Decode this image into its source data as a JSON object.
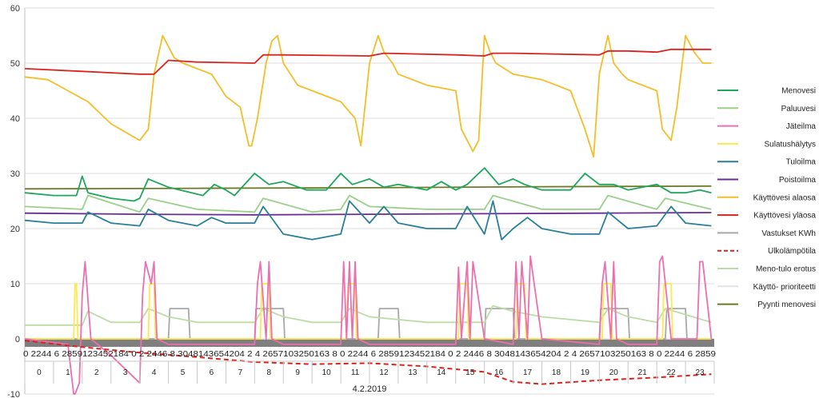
{
  "chart_data": {
    "type": "line",
    "title": "",
    "xlabel": "",
    "ylabel": "",
    "ylim": [
      -10,
      60
    ],
    "y_ticks": [
      -10,
      0,
      10,
      20,
      30,
      40,
      50,
      60
    ],
    "grid": true,
    "legend_position": "right",
    "date_label": "4.2.2019",
    "minute_label_row": "0 2244 6 2859123452184 0 2 2446 8 3048143654204 2 4 2657103250163 8 0 2244 6 2859123452184 0 2 2446 8 3048143654204 2 4 2657103250163 8 0 2244 6 2859",
    "hours": [
      "0",
      "1",
      "2",
      "3",
      "4",
      "5",
      "6",
      "7",
      "8",
      "9",
      "10",
      "11",
      "12",
      "13",
      "14",
      "15",
      "16",
      "17",
      "18",
      "19",
      "20",
      "21",
      "22",
      "23"
    ],
    "series": [
      {
        "name": "Menovesi",
        "color": "#1fa65a",
        "style": "solid",
        "x": [
          0,
          1,
          1.8,
          2,
          2.2,
          3,
          3.8,
          4,
          4.3,
          5,
          6.2,
          6.6,
          7,
          7.3,
          8,
          8.5,
          9,
          9.8,
          10.5,
          11,
          11.4,
          12,
          12.5,
          13,
          14,
          14.5,
          15,
          15.4,
          16,
          16.5,
          17,
          17.4,
          18,
          19,
          19.5,
          20,
          20.5,
          21,
          22,
          22.5,
          23,
          23.5,
          23.9
        ],
        "y": [
          26.5,
          26,
          26,
          29.5,
          26.5,
          25.5,
          25,
          25.5,
          29,
          27.5,
          26,
          28,
          27,
          26,
          30,
          28,
          28.5,
          27,
          27,
          30,
          28,
          29,
          27.5,
          28,
          27,
          28.5,
          27,
          28,
          31,
          28,
          29,
          28,
          27,
          27,
          30,
          28,
          28,
          27,
          28,
          26.5,
          26.5,
          27,
          26.5
        ]
      },
      {
        "name": "Paluuvesi",
        "color": "#9ad08a",
        "style": "solid",
        "x": [
          0,
          2,
          2.2,
          4,
          4.3,
          6,
          8,
          8.3,
          10,
          11,
          11.3,
          12,
          14,
          16,
          16.3,
          18,
          20,
          20.3,
          22,
          22.3,
          23.9
        ],
        "y": [
          24,
          23.5,
          26,
          23,
          25.5,
          23.5,
          23,
          25.5,
          23,
          23.5,
          26,
          24,
          23.5,
          23.5,
          26,
          23.5,
          23.5,
          26,
          23.5,
          25.5,
          23.5
        ]
      },
      {
        "name": "Jäteilma",
        "color": "#ec6fae",
        "style": "solid",
        "x": [
          0,
          1.5,
          1.7,
          1.75,
          1.9,
          2,
          2.1,
          2.3,
          3,
          4,
          4.1,
          4.2,
          4.4,
          4.5,
          4.6,
          5,
          6,
          8,
          8.1,
          8.2,
          8.4,
          8.5,
          8.6,
          9,
          10,
          11,
          11.1,
          11.2,
          11.3,
          11.4,
          11.5,
          11.6,
          12,
          14,
          15,
          15.1,
          15.2,
          15.4,
          15.5,
          15.6,
          16,
          17,
          17.1,
          17.2,
          17.3,
          17.5,
          17.6,
          18,
          20,
          20.1,
          20.2,
          20.4,
          20.5,
          20.6,
          21,
          22,
          22.1,
          22.2,
          22.5,
          23.4,
          23.5,
          23.6,
          23.9
        ],
        "y": [
          0,
          -1,
          -10,
          -10,
          -8,
          8,
          14,
          0,
          -3,
          -8,
          8,
          14,
          10,
          14,
          0,
          -1,
          -1,
          -1,
          10,
          14,
          0,
          14,
          0,
          -1,
          -1,
          -1,
          14,
          0,
          14,
          0,
          14,
          0,
          -1,
          -1,
          -1,
          13,
          0,
          14,
          0,
          14,
          0,
          -1,
          14,
          0,
          14,
          0,
          15,
          0,
          -1,
          10,
          14,
          0,
          14,
          0,
          -1,
          -1,
          14,
          15,
          0,
          0,
          14,
          14,
          0
        ]
      },
      {
        "name": "Sulatushälytys",
        "color": "#ffe84d",
        "style": "solid",
        "x": [
          0,
          1.7,
          1.75,
          1.8,
          1.85,
          4.3,
          4.35,
          4.5,
          4.55,
          8.2,
          8.25,
          8.5,
          8.55,
          11.2,
          11.25,
          11.5,
          11.55,
          15.1,
          15.15,
          15.4,
          15.45,
          17.1,
          17.15,
          17.4,
          17.45,
          20.1,
          20.15,
          20.4,
          20.45,
          22.2,
          22.25,
          22.5,
          22.55,
          23.9
        ],
        "y": [
          0,
          0,
          10,
          10,
          0,
          0,
          10,
          10,
          0,
          0,
          10,
          10,
          0,
          0,
          10,
          10,
          0,
          0,
          10,
          10,
          0,
          0,
          10,
          10,
          0,
          0,
          10,
          10,
          0,
          0,
          10,
          10,
          0,
          0
        ]
      },
      {
        "name": "Tuloilma",
        "color": "#2a7f98",
        "style": "solid",
        "x": [
          0,
          1,
          2,
          2.2,
          3,
          4,
          4.3,
          5,
          6,
          6.5,
          7,
          8,
          8.3,
          9,
          10,
          10.5,
          11,
          11.3,
          12,
          12.5,
          13,
          14,
          15,
          15.4,
          16,
          16.3,
          16.6,
          17,
          17.5,
          18,
          19,
          20,
          20.3,
          21,
          22,
          22.5,
          23,
          23.9
        ],
        "y": [
          21.5,
          21,
          21,
          23,
          21,
          20.5,
          23.5,
          21.5,
          20.5,
          22,
          21,
          21,
          24,
          19,
          18,
          18.5,
          19,
          25,
          21,
          24,
          21,
          20,
          20,
          24,
          19,
          25,
          18,
          20,
          22,
          20,
          19,
          19,
          23,
          20,
          20.5,
          24,
          21,
          20.5
        ]
      },
      {
        "name": "Poistoilma",
        "color": "#6a2c91",
        "style": "solid",
        "x": [
          0,
          4,
          8,
          12,
          16,
          20,
          23.9
        ],
        "y": [
          22.8,
          22.6,
          22.5,
          22.6,
          22.7,
          22.8,
          22.9
        ]
      },
      {
        "name": "Käyttövesi alaosa",
        "color": "#f2be2a",
        "style": "solid",
        "x": [
          0,
          0.8,
          1.5,
          2.2,
          3,
          3.5,
          4,
          4.3,
          4.5,
          4.8,
          5,
          5.2,
          5.5,
          6,
          6.5,
          7,
          7.5,
          7.8,
          7.9,
          8.1,
          8.4,
          8.6,
          8.8,
          9,
          9.5,
          10,
          10.5,
          11,
          11.5,
          11.7,
          12,
          12.3,
          12.5,
          12.8,
          13,
          14,
          15,
          15.2,
          15.4,
          15.6,
          15.8,
          16,
          16.2,
          16.4,
          17,
          18,
          19,
          19.5,
          19.8,
          20,
          20.3,
          20.5,
          20.8,
          21,
          22,
          22.2,
          22.5,
          22.7,
          23,
          23.3,
          23.6,
          23.9
        ],
        "y": [
          47.5,
          47,
          45,
          43,
          39,
          37.5,
          36,
          38,
          48,
          55,
          53,
          51,
          50,
          49,
          48,
          44,
          42,
          35,
          35,
          40,
          50,
          54,
          55,
          50,
          46,
          45,
          44,
          43,
          40,
          35,
          50,
          55,
          52,
          50,
          48,
          46,
          45,
          38,
          36,
          34,
          36,
          55,
          52,
          50,
          48,
          47,
          45,
          38,
          33,
          48,
          55,
          50,
          48,
          47,
          45,
          38,
          36,
          42,
          55,
          52,
          50,
          50
        ]
      },
      {
        "name": "Käyttövesi yläosa",
        "color": "#d9231f",
        "style": "solid",
        "x": [
          0,
          2,
          4,
          4.5,
          5,
          6,
          8,
          8.3,
          9,
          12,
          12.5,
          15,
          16,
          16.3,
          17,
          20,
          20.3,
          21,
          22,
          22.5,
          23.9
        ],
        "y": [
          49,
          48.5,
          48,
          48,
          50.5,
          50.2,
          50,
          51.5,
          51.5,
          51.3,
          51.8,
          51.5,
          51.3,
          51.8,
          51.8,
          51.5,
          52.2,
          52.2,
          52,
          52.5,
          52.5
        ]
      },
      {
        "name": "Vastukset KWh",
        "color": "#a8a8a8",
        "style": "solid",
        "x": [
          0,
          5,
          5.05,
          5.7,
          5.75,
          8,
          8.05,
          9,
          9.05,
          12.3,
          12.35,
          13,
          13.05,
          16,
          16.05,
          17,
          17.05,
          20,
          20.05,
          21,
          21.05,
          22.3,
          22.35,
          23,
          23.05,
          23.9
        ],
        "y": [
          0,
          0,
          5.5,
          5.5,
          0,
          0,
          5.5,
          5.5,
          0,
          0,
          5.5,
          5.5,
          0,
          0,
          5.5,
          5.5,
          0,
          0,
          5.5,
          5.5,
          0,
          0,
          5.5,
          5.5,
          0,
          0
        ]
      },
      {
        "name": "Ulkolämpötila",
        "color": "#d9231f",
        "style": "dashed",
        "x": [
          0,
          2,
          4,
          6,
          8,
          10,
          12,
          14,
          16,
          17,
          18,
          20,
          22,
          23.9
        ],
        "y": [
          -0.3,
          -1.5,
          -2.5,
          -3.3,
          -4.2,
          -4.6,
          -4.4,
          -5,
          -6,
          -7.8,
          -8.2,
          -7.5,
          -7,
          -6.4
        ]
      },
      {
        "name": "Meno-tulo erotus",
        "color": "#bcdca6",
        "style": "solid",
        "x": [
          0,
          1,
          2,
          2.2,
          3,
          4,
          4.3,
          5,
          6,
          8,
          8.3,
          9,
          10,
          11,
          11.3,
          12,
          14,
          16,
          16.3,
          17,
          18,
          20,
          20.3,
          21,
          22,
          22.3,
          23.9
        ],
        "y": [
          2.5,
          2.5,
          2.5,
          5,
          3,
          3,
          5.5,
          4,
          3,
          3,
          5.5,
          4,
          3,
          3,
          5.5,
          4,
          3,
          3,
          6,
          5,
          4,
          3,
          5.5,
          4,
          3,
          5.5,
          3
        ]
      },
      {
        "name": "Käyttö- prioriteetti",
        "color": "#e4e4e4",
        "style": "solid",
        "x": [
          0,
          23.9
        ],
        "y": [
          0,
          0
        ]
      },
      {
        "name": "Pyynti menovesi",
        "color": "#6b7a26",
        "style": "solid",
        "x": [
          0,
          6,
          12,
          18,
          23.9
        ],
        "y": [
          27.2,
          27.3,
          27.4,
          27.6,
          27.7
        ]
      }
    ]
  }
}
